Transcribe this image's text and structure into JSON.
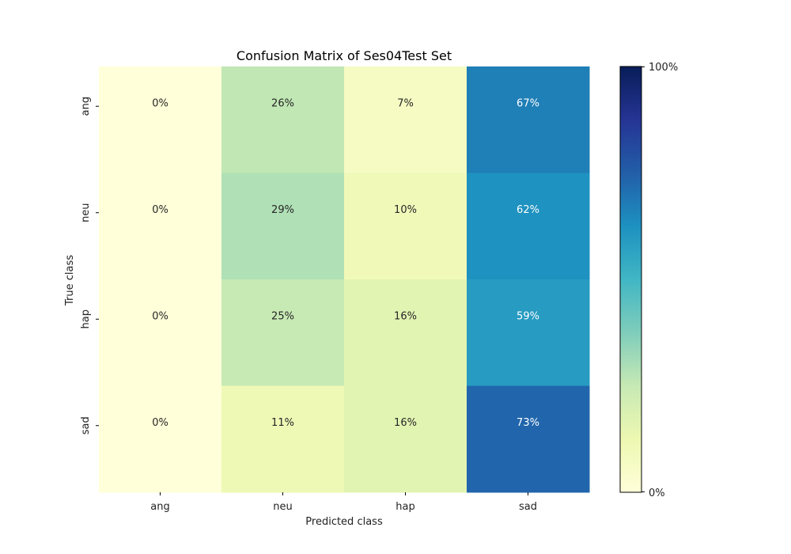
{
  "chart_data": {
    "type": "heatmap",
    "title": "Confusion Matrix of Ses04Test Set",
    "xlabel": "Predicted class",
    "ylabel": "True class",
    "x_categories": [
      "ang",
      "neu",
      "hap",
      "sad"
    ],
    "y_categories": [
      "ang",
      "neu",
      "hap",
      "sad"
    ],
    "values": [
      [
        0,
        26,
        7,
        67
      ],
      [
        0,
        29,
        10,
        62
      ],
      [
        0,
        25,
        16,
        59
      ],
      [
        0,
        11,
        16,
        73
      ]
    ],
    "cell_labels": [
      [
        "0%",
        "26%",
        "7%",
        "67%"
      ],
      [
        "0%",
        "29%",
        "10%",
        "62%"
      ],
      [
        "0%",
        "25%",
        "16%",
        "59%"
      ],
      [
        "0%",
        "11%",
        "16%",
        "73%"
      ]
    ],
    "value_range": [
      0,
      100
    ],
    "colormap": "YlGnBu",
    "colorbar": {
      "min_label": "0%",
      "max_label": "100%"
    }
  }
}
